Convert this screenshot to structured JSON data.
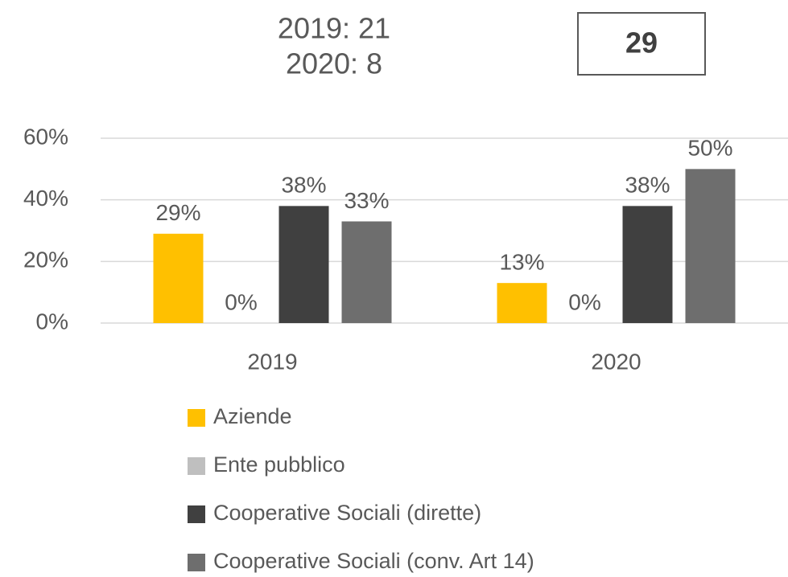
{
  "chart_data": {
    "type": "bar",
    "annotations": [
      "2019: 21",
      "2020: 8"
    ],
    "box_text": "29",
    "categories": [
      "2019",
      "2020"
    ],
    "series": [
      {
        "name": "Aziende",
        "color": "#FFC000",
        "values": [
          29,
          13
        ],
        "value_labels": [
          "29%",
          "13%"
        ]
      },
      {
        "name": "Ente pubblico",
        "color": "#BFBFBF",
        "values": [
          0,
          0
        ],
        "value_labels": [
          "0%",
          "0%"
        ]
      },
      {
        "name": "Cooperative Sociali (dirette)",
        "color": "#404040",
        "values": [
          38,
          38
        ],
        "value_labels": [
          "38%",
          "38%"
        ]
      },
      {
        "name": "Cooperative Sociali (conv. Art 14)",
        "color": "#6E6E6E",
        "values": [
          33,
          50
        ],
        "value_labels": [
          "33%",
          "50%"
        ]
      }
    ],
    "ylim": [
      0,
      60
    ],
    "yticks": [
      {
        "value": 0,
        "label": "0%"
      },
      {
        "value": 20,
        "label": "20%"
      },
      {
        "value": 40,
        "label": "40%"
      },
      {
        "value": 60,
        "label": "60%"
      }
    ],
    "grid": true
  }
}
